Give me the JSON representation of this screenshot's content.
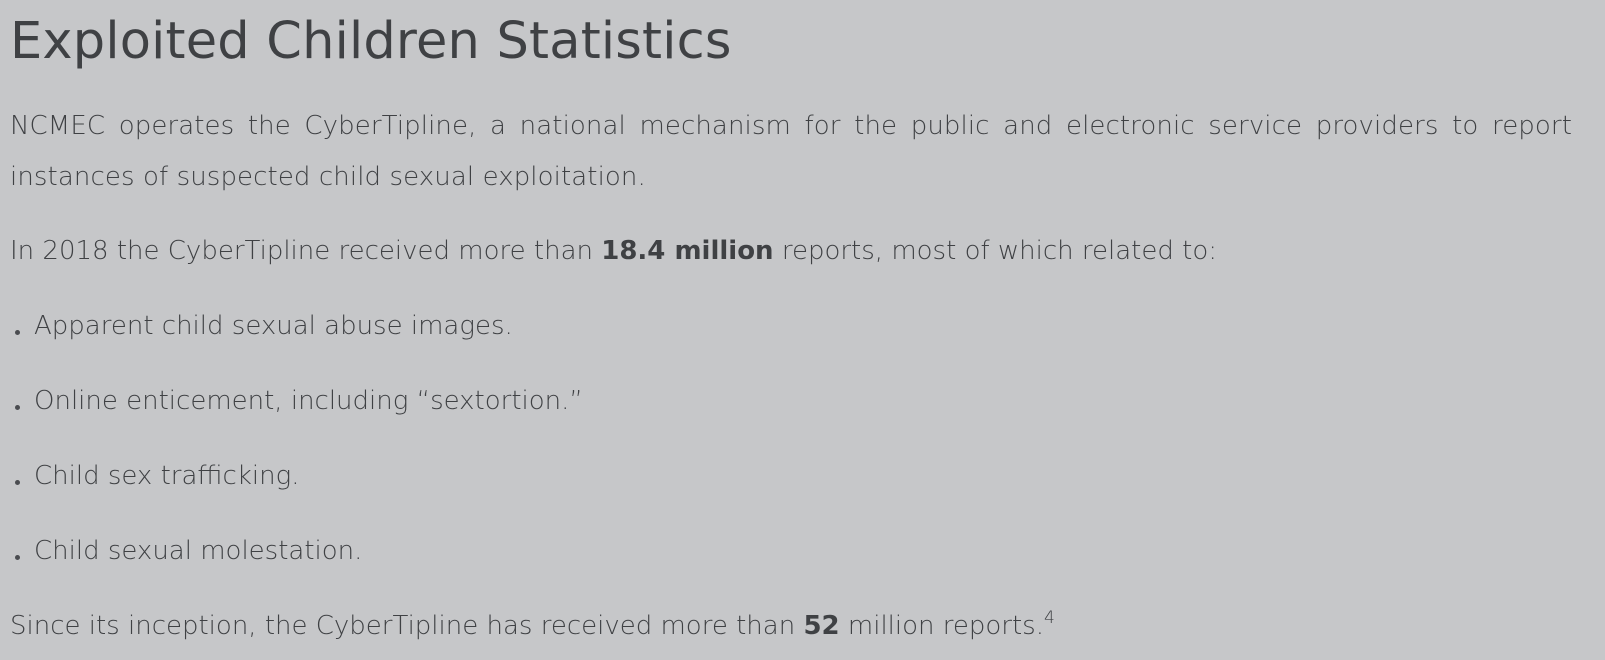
{
  "page": {
    "title": "Exploited Children Statistics",
    "intro": {
      "line1": "NCMEC operates the CyberTipline, a national mechanism for the public and electronic service providers to report",
      "line2": "instances of suspected child sexual exploitation."
    },
    "reports_2018": {
      "before": "In 2018 the CyberTipline received more than ",
      "highlight": "18.4 million",
      "after": " reports, most of which related to:"
    },
    "bullets": [
      "Apparent child sexual abuse images.",
      "Online enticement, including “sextortion.”",
      "Child sex trafficking.",
      "Child sexual molestation."
    ],
    "since_inception": {
      "before": "Since its inception, the CyberTipline has received more than ",
      "highlight": "52",
      "after": " million reports.",
      "footnote": "4"
    }
  }
}
